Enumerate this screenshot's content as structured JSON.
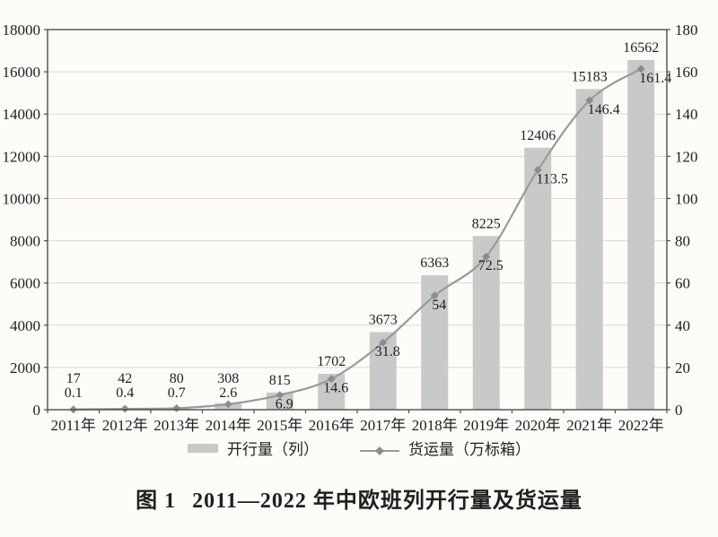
{
  "figure": {
    "caption_label": "图 1",
    "caption_title": "2011—2022 年中欧班列开行量及货运量"
  },
  "chart_data": {
    "type": "combo-bar-line",
    "categories": [
      "2011年",
      "2012年",
      "2013年",
      "2014年",
      "2015年",
      "2016年",
      "2017年",
      "2018年",
      "2019年",
      "2020年",
      "2021年",
      "2022年"
    ],
    "series": [
      {
        "name": "开行量（列）",
        "type": "bar",
        "axis": "left",
        "values": [
          17,
          42,
          80,
          308,
          815,
          1702,
          3673,
          6363,
          8225,
          12406,
          15183,
          16562
        ]
      },
      {
        "name": "货运量（万标箱）",
        "type": "line",
        "axis": "right",
        "values": [
          0.1,
          0.4,
          0.7,
          2.6,
          6.9,
          14.6,
          31.8,
          54,
          72.5,
          113.5,
          146.4,
          161.4
        ]
      }
    ],
    "left_axis": {
      "min": 0,
      "max": 18000,
      "step": 2000
    },
    "right_axis": {
      "min": 0,
      "max": 180,
      "step": 20
    },
    "grid": true,
    "legend_position": "bottom",
    "data_labels": true,
    "colors": {
      "bar": "#c9c9c9",
      "line": "#9a9a9a",
      "marker": "#8c8c8c",
      "axis": "#4d4d4d",
      "grid": "#d9d9d9",
      "text": "#1f1f1f",
      "background": "#fdfcf9"
    }
  }
}
